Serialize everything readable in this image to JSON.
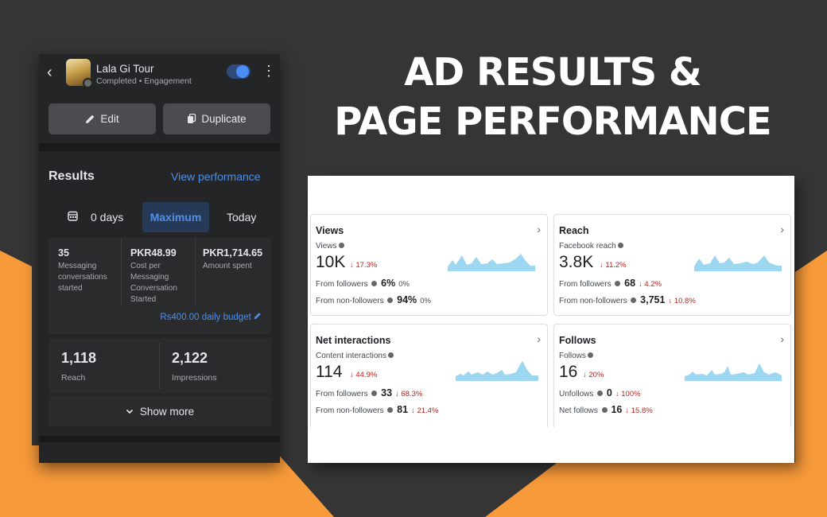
{
  "headline": {
    "line1": "AD RESULTS &",
    "line2": "PAGE PERFORMANCE"
  },
  "colors": {
    "background": "#353535",
    "accent_orange": "#f79a3a",
    "link_blue": "#4e8fe8",
    "sparkline": "#9dd6f1",
    "decrease_red": "#b3261e"
  },
  "ad": {
    "name": "Lala Gi Tour",
    "status": "Completed • Engagement",
    "toggle_on": true,
    "edit_label": "Edit",
    "duplicate_label": "Duplicate"
  },
  "results": {
    "title": "Results",
    "view_performance": "View performance",
    "date_range": {
      "days": "0 days",
      "selected": "Maximum",
      "today": "Today"
    },
    "metrics": [
      {
        "value": "35",
        "label": "Messaging conversations started"
      },
      {
        "value": "PKR48.99",
        "label": "Cost per Messaging Conversation Started"
      },
      {
        "value": "PKR1,714.65",
        "label": "Amount spent"
      }
    ],
    "daily_budget": "Rs400.00 daily budget",
    "reach": {
      "value": "1,118",
      "label": "Reach"
    },
    "impressions": {
      "value": "2,122",
      "label": "Impressions"
    },
    "show_more": "Show more"
  },
  "insights": {
    "views": {
      "title": "Views",
      "subtitle": "Views",
      "value": "10K",
      "change": "↓ 17.3%",
      "rows": [
        {
          "label": "From followers",
          "value": "6%",
          "change": "0%"
        },
        {
          "label": "From non-followers",
          "value": "94%",
          "change": "0%"
        }
      ],
      "spark_icon": "chevron-right-icon"
    },
    "reach": {
      "title": "Reach",
      "subtitle": "Facebook reach",
      "value": "3.8K",
      "change": "↓ 11.2%",
      "rows": [
        {
          "label": "From followers",
          "value": "68",
          "change": "↓ 4.2%"
        },
        {
          "label": "From non-followers",
          "value": "3,751",
          "change": "↓ 10.8%"
        }
      ]
    },
    "net_interactions": {
      "title": "Net interactions",
      "subtitle": "Content interactions",
      "value": "114",
      "change": "↓ 44.9%",
      "rows": [
        {
          "label": "From followers",
          "value": "33",
          "change": "↓ 68.3%"
        },
        {
          "label": "From non-followers",
          "value": "81",
          "change": "↓ 21.4%"
        }
      ]
    },
    "follows": {
      "title": "Follows",
      "subtitle": "Follows",
      "value": "16",
      "change": "↓ 20%",
      "rows": [
        {
          "label": "Unfollows",
          "value": "0",
          "change": "↓ 100%"
        },
        {
          "label": "Net follows",
          "value": "16",
          "change": "↓ 15.8%"
        }
      ]
    }
  }
}
